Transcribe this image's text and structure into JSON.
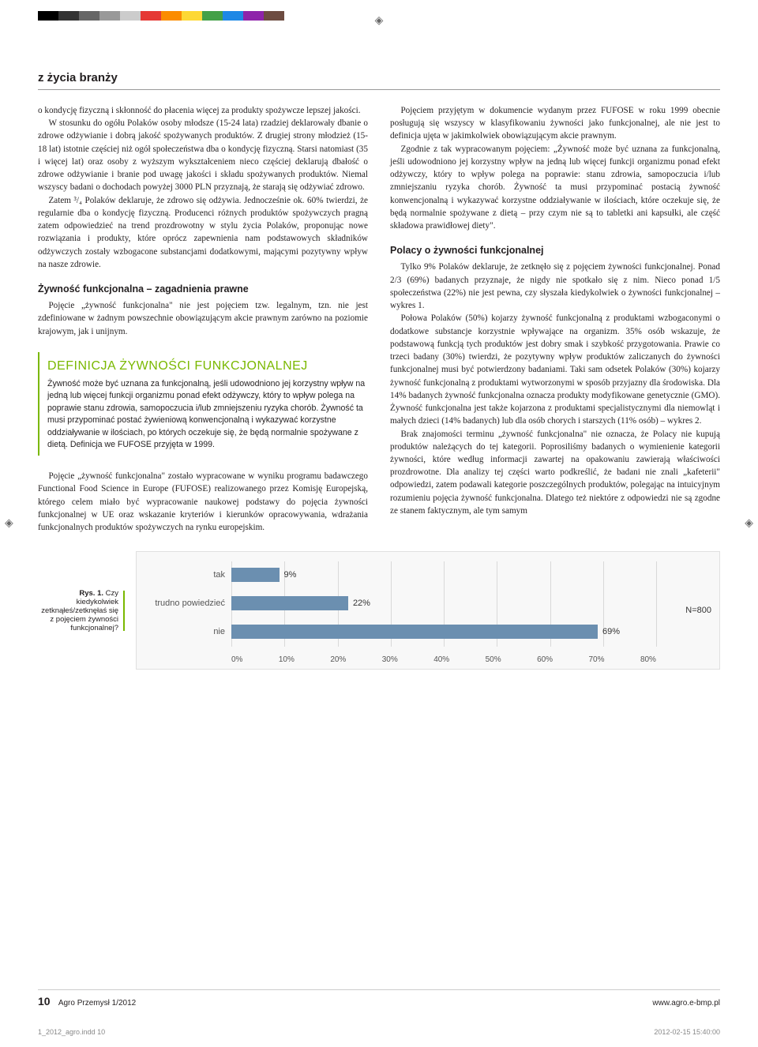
{
  "registration_glyph": "◈",
  "color_bar": [
    "#000000",
    "#333333",
    "#666666",
    "#999999",
    "#cccccc",
    "#e53935",
    "#fb8c00",
    "#fdd835",
    "#43a047",
    "#1e88e5",
    "#8e24aa",
    "#6d4c41"
  ],
  "section_tag": "z życia branży",
  "left_col": {
    "p1": "o kondycję fizyczną i skłonność do płacenia więcej za produkty spożywcze lepszej jakości.",
    "p2": "W stosunku do ogółu Polaków osoby młodsze (15-24 lata) rzadziej deklarowały dbanie o zdrowe odżywianie i dobrą jakość spożywanych produktów. Z drugiej strony młodzież (15-18 lat) istotnie częściej niż ogół społeczeństwa dba o kondycję fizyczną. Starsi natomiast (35 i więcej lat) oraz osoby z wyższym wykształceniem nieco częściej deklarują dbałość o zdrowe odżywianie i branie pod uwagę jakości i składu spożywanych produktów. Niemal wszyscy badani o dochodach powyżej 3000 PLN przyznają, że starają się odżywiać zdrowo.",
    "p3": "Zatem ³/₄ Polaków deklaruje, że zdrowo się odżywia. Jednocześnie ok. 60% twierdzi, że regularnie dba o kondycję fizyczną. Producenci różnych produktów spożywczych pragną zatem odpowiedzieć na trend prozdrowotny w stylu życia Polaków, proponując nowe rozwiązania i produkty, które oprócz zapewnienia nam podstawowych składników odżywczych zostały wzbogacone substancjami dodatkowymi, mającymi pozytywny wpływ na nasze zdrowie.",
    "sub1": "Żywność funkcjonalna – zagadnienia prawne",
    "p4": "Pojęcie „żywność funkcjonalna\" nie jest pojęciem tzw. legalnym, tzn. nie jest zdefiniowane w żadnym powszechnie obowiązującym akcie prawnym zarówno na poziomie krajowym, jak i unijnym.",
    "pullout_title": "DEFINICJA ŻYWNOŚCI FUNKCJONALNEJ",
    "pullout_body": "Żywność może być uznana za funkcjonalną, jeśli udowodniono jej korzystny wpływ na jedną lub więcej funkcji organizmu ponad efekt odżywczy, który to wpływ polega na poprawie stanu zdrowia, samopoczucia i/lub zmniejszeniu ryzyka chorób. Żywność ta musi przypominać postać żywieniową konwencjonalną i wykazywać korzystne oddziaływanie w ilościach, po których oczekuje się, że będą normalnie spożywane z dietą.\nDefinicja we FUFOSE przyjęta w 1999.",
    "p5": "Pojęcie „żywność funkcjonalna\" zostało wypracowane w wyniku programu badawczego Functional Food Science in Europe (FUFOSE) realizowanego przez Komisję Europejską, którego celem miało być wypracowanie naukowej podstawy do pojęcia żywności funkcjonalnej w UE oraz wskazanie kryteriów i kierunków opracowywania, wdrażania funkcjonalnych produktów spożywczych na rynku europejskim."
  },
  "right_col": {
    "p1": "Pojęciem przyjętym w dokumencie wydanym przez FUFOSE w roku 1999 obecnie posługują się wszyscy w klasyfikowaniu żywności jako funkcjonalnej, ale nie jest to definicja ujęta w jakimkolwiek obowiązującym akcie prawnym.",
    "p2": "Zgodnie z tak wypracowanym pojęciem: „Żywność może być uznana za funkcjonalną, jeśli udowodniono jej korzystny wpływ na jedną lub więcej funkcji organizmu ponad efekt odżywczy, który to wpływ polega na poprawie: stanu zdrowia, samopoczucia i/lub zmniejszaniu ryzyka chorób. Żywność ta musi przypominać postacią żywność konwencjonalną i wykazywać korzystne oddziaływanie w ilościach, które oczekuje się, że będą normalnie spożywane z dietą – przy czym nie są to tabletki ani kapsułki, ale część składowa prawidłowej diety\".",
    "sub1": "Polacy o żywności funkcjonalnej",
    "p3": "Tylko 9% Polaków deklaruje, że zetknęło się z pojęciem żywności funkcjonalnej. Ponad 2/3 (69%) badanych przyznaje, że nigdy nie spotkało się z nim. Nieco ponad 1/5 społeczeństwa (22%) nie jest pewna, czy słyszała kiedykolwiek o żywności funkcjonalnej – wykres 1.",
    "p4": "Połowa Polaków (50%) kojarzy żywność funkcjonalną z produktami wzbogaconymi o dodatkowe substancje korzystnie wpływające na organizm. 35% osób wskazuje, że podstawową funkcją tych produktów jest dobry smak i szybkość przygotowania. Prawie co trzeci badany (30%) twierdzi, że pozytywny wpływ produktów zaliczanych do żywności funkcjonalnej musi być potwierdzony badaniami. Taki sam odsetek Polaków (30%) kojarzy żywność funkcjonalną z produktami wytworzonymi w sposób przyjazny dla środowiska. Dla 14% badanych żywność funkcjonalna oznacza produkty modyfikowane genetycznie (GMO). Żywność funkcjonalna jest także kojarzona z produktami specjalistycznymi dla niemowląt i małych dzieci (14% badanych) lub dla osób chorych i starszych (11% osób) – wykres 2.",
    "p5": "Brak znajomości terminu „żywność funkcjonalna\" nie oznacza, że Polacy nie kupują produktów należących do tej kategorii. Poprosiliśmy badanych o wymienienie kategorii żywności, które według informacji zawartej na opakowaniu zawierają właściwości prozdrowotne. Dla analizy tej części warto podkreślić, że badani nie znali „kafeterii\" odpowiedzi, zatem podawali kategorie poszczególnych produktów, polegając na intuicyjnym rozumieniu pojęcia żywność funkcjonalna. Dlatego też niektóre z odpowiedzi nie są zgodne ze stanem faktycznym, ale tym samym"
  },
  "figure": {
    "caption_bold": "Rys. 1.",
    "caption_rest": " Czy kiedykolwiek zetknąłeś/zetknęłaś się z pojęciem żywności funkcjonalnej?",
    "categories": [
      "tak",
      "trudno powiedzieć",
      "nie"
    ],
    "values": [
      9,
      22,
      69
    ],
    "value_labels": [
      "9%",
      "22%",
      "69%"
    ],
    "xmax": 80,
    "xticks": [
      "0%",
      "10%",
      "20%",
      "30%",
      "40%",
      "50%",
      "60%",
      "70%",
      "80%"
    ],
    "bar_color": "#6b8fb0",
    "plot_bg": "#f8f8f8",
    "grid_color": "#d9d9d9",
    "n_label": "N=800"
  },
  "footer": {
    "page": "10",
    "journal": "Agro Przemysł  1/2012",
    "url": "www.agro.e-bmp.pl"
  },
  "printline": {
    "file": "1_2012_agro.indd   10",
    "timestamp": "2012-02-15   15:40:00"
  }
}
